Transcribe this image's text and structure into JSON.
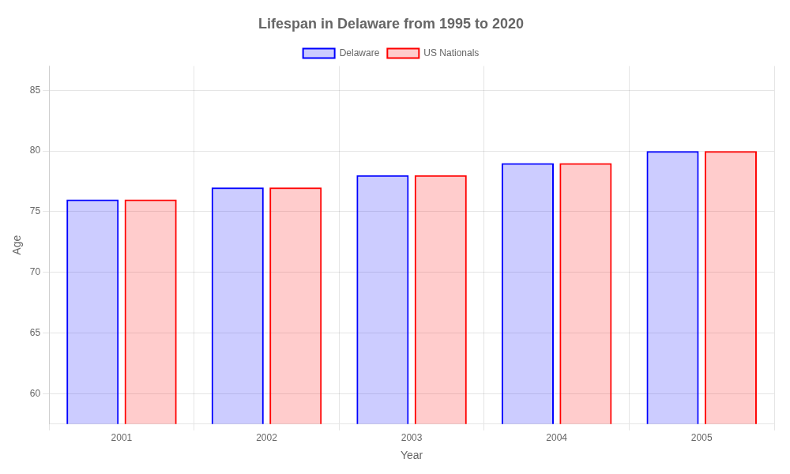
{
  "chart_data": {
    "type": "bar",
    "title": "Lifespan in Delaware from 1995 to 2020",
    "x_label": "Year",
    "y_label": "Age",
    "categories": [
      "2001",
      "2002",
      "2003",
      "2004",
      "2005"
    ],
    "series": [
      {
        "name": "Delaware",
        "color": "#0000ff",
        "values": [
          76,
          77,
          78,
          79,
          80
        ]
      },
      {
        "name": "US Nationals",
        "color": "#ff0000",
        "values": [
          76,
          77,
          78,
          79,
          80
        ]
      }
    ],
    "ylim": [
      57.5,
      87
    ],
    "yticks": [
      60,
      65,
      70,
      75,
      80,
      85
    ],
    "grid": true,
    "legend": "top"
  }
}
